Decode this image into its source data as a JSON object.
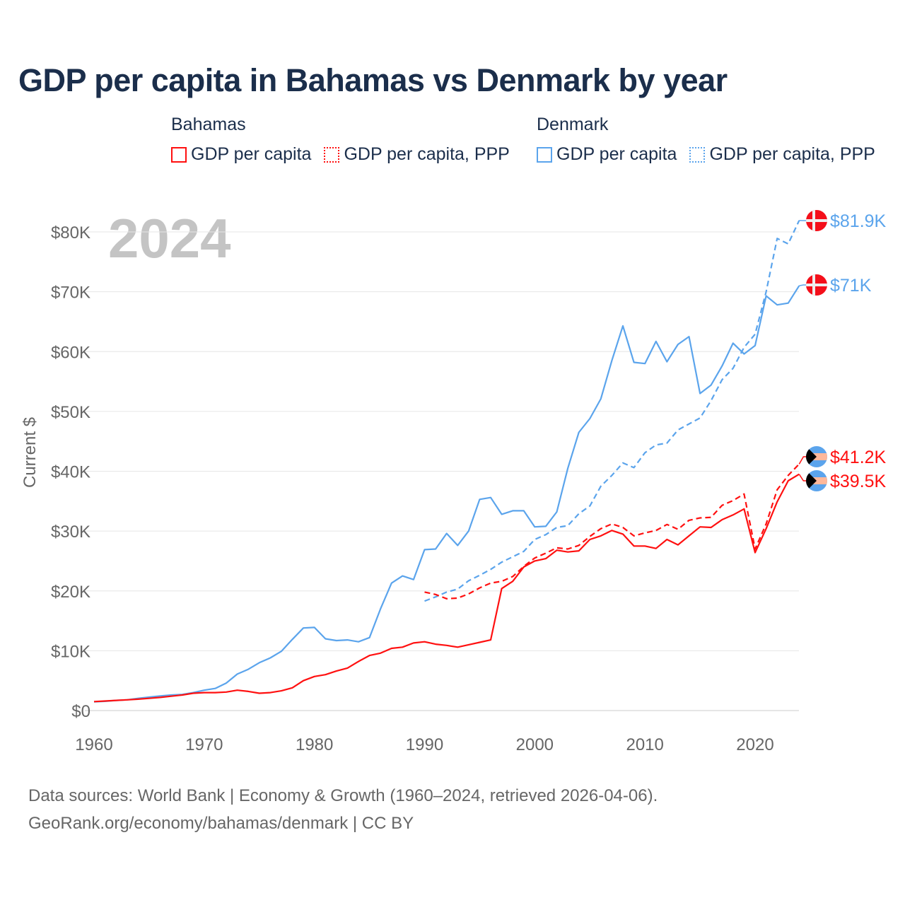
{
  "title": "GDP per capita in Bahamas vs Denmark by year",
  "legend": [
    {
      "country": "Bahamas",
      "items": [
        {
          "label": "GDP per capita",
          "style": "solid",
          "color": "#ff1010"
        },
        {
          "label": "GDP per capita, PPP",
          "style": "dotted",
          "color": "#ff1010"
        }
      ]
    },
    {
      "country": "Denmark",
      "items": [
        {
          "label": "GDP per capita",
          "style": "solid",
          "color": "#5ba4ec"
        },
        {
          "label": "GDP per capita, PPP",
          "style": "dotted",
          "color": "#5ba4ec"
        }
      ]
    }
  ],
  "year_watermark": "2024",
  "footer": {
    "line1": "Data sources: World Bank | Economy & Growth (1960–2024, retrieved 2026-04-06).",
    "line2": "GeoRank.org/economy/bahamas/denmark | CC BY"
  },
  "chart_data": {
    "type": "line",
    "title": "GDP per capita in Bahamas vs Denmark by year",
    "xlabel": "",
    "ylabel": "Current $",
    "xlim": [
      1960,
      2024
    ],
    "ylim": [
      0,
      85000
    ],
    "x_ticks": [
      1960,
      1970,
      1980,
      1990,
      2000,
      2010,
      2020
    ],
    "y_ticks": [
      0,
      10000,
      20000,
      30000,
      40000,
      50000,
      60000,
      70000,
      80000
    ],
    "y_tick_labels": [
      "$0",
      "$10K",
      "$20K",
      "$30K",
      "$40K",
      "$50K",
      "$60K",
      "$70K",
      "$80K"
    ],
    "grid": true,
    "legend_position": "top",
    "series": [
      {
        "name": "Denmark GDP per capita, PPP",
        "country": "Denmark",
        "color": "#5ba4ec",
        "dashed": true,
        "end_label": "$81.9K",
        "flag": "denmark",
        "start": 1990,
        "values": [
          18300,
          19000,
          19800,
          20300,
          21700,
          22600,
          23600,
          24800,
          25700,
          26600,
          28600,
          29400,
          30600,
          30900,
          32900,
          34200,
          37500,
          39300,
          41400,
          40600,
          43100,
          44400,
          44700,
          46900,
          47900,
          48900,
          51800,
          55300,
          57200,
          60700,
          62900,
          70000,
          78900,
          78000,
          81900
        ]
      },
      {
        "name": "Denmark GDP per capita",
        "country": "Denmark",
        "color": "#5ba4ec",
        "dashed": false,
        "end_label": "$71K",
        "flag": "denmark",
        "start": 1960,
        "values": [
          1450,
          1550,
          1700,
          1800,
          2050,
          2250,
          2450,
          2600,
          2700,
          3000,
          3400,
          3700,
          4600,
          6100,
          6900,
          8000,
          8800,
          9900,
          11900,
          13800,
          13900,
          12000,
          11700,
          11800,
          11500,
          12200,
          17000,
          21300,
          22500,
          21900,
          26900,
          27000,
          29600,
          27600,
          30000,
          35300,
          35600,
          32800,
          33400,
          33400,
          30700,
          30800,
          33200,
          40500,
          46500,
          48800,
          52100,
          58500,
          64300,
          58200,
          58000,
          61700,
          58300,
          61200,
          62500,
          53000,
          54400,
          57600,
          61400,
          59600,
          61000,
          69300,
          67800,
          68100,
          71000
        ]
      },
      {
        "name": "Bahamas GDP per capita, PPP",
        "country": "Bahamas",
        "color": "#ff1010",
        "dashed": true,
        "end_label": "$41.2K",
        "flag": "bahamas",
        "start": 1990,
        "values": [
          19800,
          19400,
          18700,
          18800,
          19500,
          20500,
          21300,
          21600,
          22400,
          24100,
          25500,
          26300,
          27200,
          27000,
          27600,
          29100,
          30400,
          31200,
          30600,
          29200,
          29700,
          30100,
          31100,
          30300,
          31800,
          32200,
          32300,
          34300,
          35100,
          36200,
          27000,
          31200,
          36900,
          39300,
          41200
        ]
      },
      {
        "name": "Bahamas GDP per capita",
        "country": "Bahamas",
        "color": "#ff1010",
        "dashed": false,
        "end_label": "$39.5K",
        "flag": "bahamas",
        "start": 1960,
        "values": [
          1500,
          1600,
          1700,
          1800,
          1900,
          2050,
          2200,
          2400,
          2600,
          2900,
          3000,
          3000,
          3100,
          3400,
          3200,
          2900,
          3000,
          3300,
          3800,
          5000,
          5700,
          6000,
          6600,
          7100,
          8200,
          9200,
          9600,
          10400,
          10600,
          11300,
          11500,
          11100,
          10900,
          10600,
          11000,
          11400,
          11800,
          20400,
          21600,
          24000,
          25000,
          25400,
          26800,
          26500,
          26700,
          28600,
          29200,
          30100,
          29500,
          27500,
          27500,
          27100,
          28600,
          27700,
          29200,
          30700,
          30600,
          31900,
          32700,
          33700,
          26400,
          30400,
          34900,
          38400,
          39500
        ]
      }
    ]
  }
}
